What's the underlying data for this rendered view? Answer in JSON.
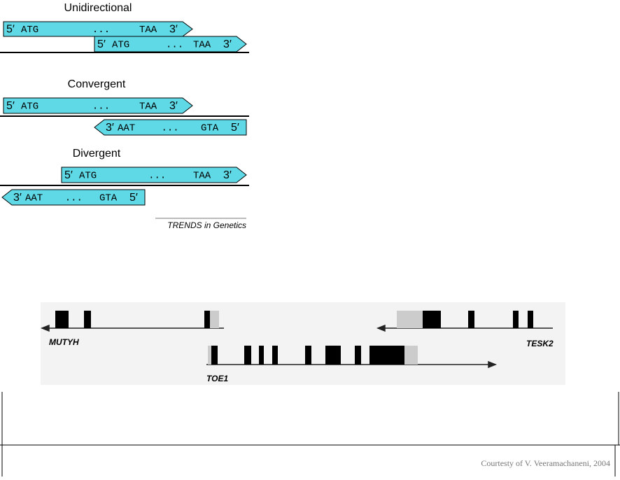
{
  "sections": [
    {
      "title": "Unidirectional",
      "genes": [
        [
          "5′",
          "ATG",
          "...",
          "TAA",
          "3′"
        ],
        [
          "5′",
          "ATG",
          "...",
          "TAA",
          "3′"
        ]
      ]
    },
    {
      "title": "Convergent",
      "genes": [
        [
          "5′",
          "ATG",
          "...",
          "TAA",
          "3′"
        ],
        [
          "3′",
          "AAT",
          "...",
          "GTA",
          "5′"
        ]
      ]
    },
    {
      "title": "Divergent",
      "genes": [
        [
          "5′",
          "ATG",
          "...",
          "TAA",
          "3′"
        ],
        [
          "3′",
          "AAT",
          "...",
          "GTA",
          "5′"
        ]
      ]
    }
  ],
  "credit": "TRENDS in Genetics",
  "gene_map": {
    "labels": [
      "MUTYH",
      "TESK2",
      "TOE1"
    ]
  },
  "footer": "Courtesty of V. Veeramachaneni, 2004"
}
